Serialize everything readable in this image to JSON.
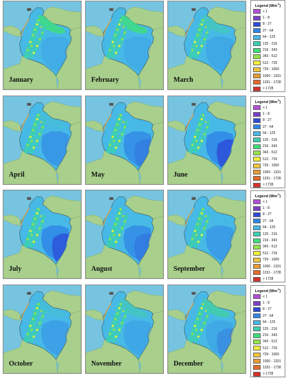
{
  "months": [
    "January",
    "February",
    "March",
    "April",
    "May",
    "June",
    "July",
    "August",
    "September",
    "October",
    "November",
    "December"
  ],
  "legend": {
    "title": "Legend (Wm",
    "title_sup": "-2",
    "title_end": ")",
    "classes": [
      {
        "range": "< 1",
        "color": "#b24fd6"
      },
      {
        "range": "1 - 8",
        "color": "#7b3fc4"
      },
      {
        "range": "8 - 27",
        "color": "#2c4bd8"
      },
      {
        "range": "27 - 64",
        "color": "#2f86e6"
      },
      {
        "range": "64 - 125",
        "color": "#47b9e6"
      },
      {
        "range": "125 - 216",
        "color": "#3ccfb1"
      },
      {
        "range": "216 - 343",
        "color": "#3ede7a"
      },
      {
        "range": "343 - 512",
        "color": "#96e24c"
      },
      {
        "range": "512 - 729",
        "color": "#f2ef3e"
      },
      {
        "range": "729 - 1000",
        "color": "#f0c63e"
      },
      {
        "range": "1000 - 1331",
        "color": "#e89a36"
      },
      {
        "range": "1331 - 1728",
        "color": "#e26a2c"
      },
      {
        "range": "> 1728",
        "color": "#d6302a"
      }
    ]
  },
  "colors": {
    "sea": "#76c4df",
    "land": "#a8cf8c",
    "base": "#47b9e6",
    "deep": "#2f86e6",
    "low": "#2c4bd8",
    "andes": "#3ccfb1",
    "high": "#3ede7a",
    "peak": "#96e24c",
    "peak2": "#f2ef3e",
    "coast": "#e89a36"
  },
  "panels": [
    {
      "month_index": 0,
      "plain_deep": 0.1,
      "east_low": 0.0,
      "north_green": 0.8
    },
    {
      "month_index": 1,
      "plain_deep": 0.1,
      "east_low": 0.0,
      "north_green": 0.8
    },
    {
      "month_index": 2,
      "plain_deep": 0.15,
      "east_low": 0.0,
      "north_green": 0.3
    },
    {
      "month_index": 3,
      "plain_deep": 0.5,
      "east_low": 0.0,
      "north_green": 0.1
    },
    {
      "month_index": 4,
      "plain_deep": 0.6,
      "east_low": 0.05,
      "north_green": 0.0
    },
    {
      "month_index": 5,
      "plain_deep": 0.7,
      "east_low": 0.6,
      "north_green": 0.0
    },
    {
      "month_index": 6,
      "plain_deep": 0.7,
      "east_low": 0.55,
      "north_green": 0.0
    },
    {
      "month_index": 7,
      "plain_deep": 0.6,
      "east_low": 0.1,
      "north_green": 0.0
    },
    {
      "month_index": 8,
      "plain_deep": 0.4,
      "east_low": 0.0,
      "north_green": 0.0
    },
    {
      "month_index": 9,
      "plain_deep": 0.3,
      "east_low": 0.0,
      "north_green": 0.1
    },
    {
      "month_index": 10,
      "plain_deep": 0.2,
      "east_low": 0.0,
      "north_green": 0.3
    },
    {
      "month_index": 11,
      "plain_deep": 0.15,
      "east_low": 0.05,
      "north_green": 0.5
    }
  ]
}
